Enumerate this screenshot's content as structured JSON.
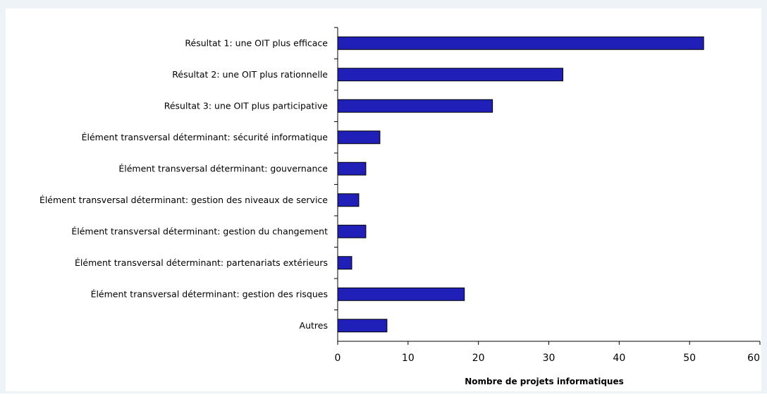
{
  "chart_data": {
    "type": "bar",
    "orientation": "horizontal",
    "categories": [
      "Résultat 1: une OIT plus efficace",
      "Résultat 2: une OIT plus rationnelle",
      "Résultat 3: une OIT plus participative",
      "Élément transversal déterminant: sécurité informatique",
      "Élément transversal déterminant: gouvernance",
      "Élément transversal déterminant: gestion des niveaux de service",
      "Élément transversal déterminant: gestion du changement",
      "Élément transversal déterminant: partenariats extérieurs",
      "Élément transversal déterminant: gestion des risques",
      "Autres"
    ],
    "values": [
      52,
      32,
      22,
      6,
      4,
      3,
      4,
      2,
      18,
      7
    ],
    "xlabel": "Nombre de projets informatiques",
    "ylabel": "",
    "xlim": [
      0,
      60
    ],
    "xticks": [
      "0",
      "10",
      "20",
      "30",
      "40",
      "50",
      "60"
    ],
    "grid": false,
    "legend": "none",
    "colors": {
      "bar_fill": "#2020b8",
      "bar_stroke": "#000000",
      "background": "#eef3f8",
      "plot_background": "#ffffff"
    }
  }
}
